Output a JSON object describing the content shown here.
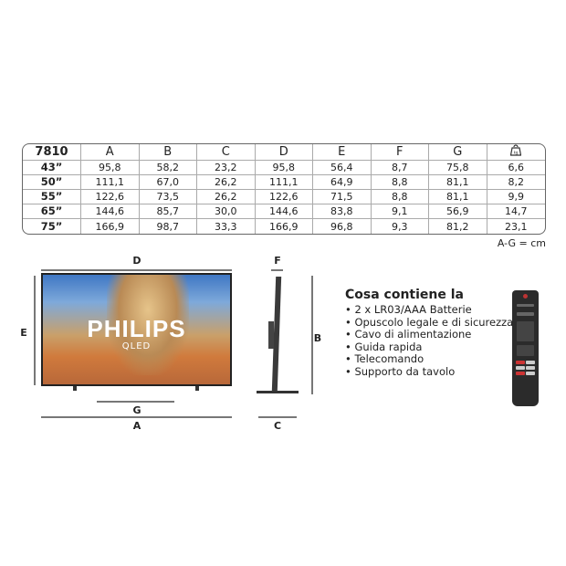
{
  "table": {
    "model": "7810",
    "columns": [
      "A",
      "B",
      "C",
      "D",
      "E",
      "F",
      "G"
    ],
    "weight_icon": "weight-kg-icon",
    "weight_icon_text": "kg",
    "rows": [
      {
        "size": "43”",
        "values": [
          "95,8",
          "58,2",
          "23,2",
          "95,8",
          "56,4",
          "8,7",
          "75,8",
          "6,6"
        ]
      },
      {
        "size": "50”",
        "values": [
          "111,1",
          "67,0",
          "26,2",
          "111,1",
          "64,9",
          "8,8",
          "81,1",
          "8,2"
        ]
      },
      {
        "size": "55”",
        "values": [
          "122,6",
          "73,5",
          "26,2",
          "122,6",
          "71,5",
          "8,8",
          "81,1",
          "9,9"
        ]
      },
      {
        "size": "65”",
        "values": [
          "144,6",
          "85,7",
          "30,0",
          "144,6",
          "83,8",
          "9,1",
          "56,9",
          "14,7"
        ]
      },
      {
        "size": "75”",
        "values": [
          "166,9",
          "98,7",
          "33,3",
          "166,9",
          "96,8",
          "9,3",
          "81,2",
          "23,1"
        ]
      }
    ],
    "unit_note": "A-G = cm"
  },
  "diagram": {
    "labels": {
      "A": "A",
      "B": "B",
      "C": "C",
      "D": "D",
      "E": "E",
      "F": "F",
      "G": "G"
    },
    "brand": "PHILIPS",
    "sub": "QLED"
  },
  "contents": {
    "title": "Cosa contiene la",
    "items": [
      "2 x LR03/AAA Batterie",
      "Opuscolo legale e di sicurezza",
      "Cavo di alimentazione",
      "Guida rapida",
      "Telecomando",
      "Supporto da tavolo"
    ]
  }
}
